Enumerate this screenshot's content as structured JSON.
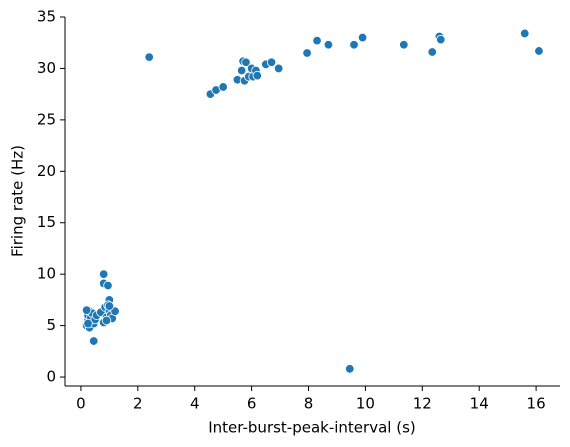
{
  "chart_data": {
    "type": "scatter",
    "x_label": "Inter-burst-peak-interval (s)",
    "y_label": "Firing rate (Hz)",
    "color": "#1f77b4",
    "x": [
      2.4,
      4.55,
      4.75,
      5.0,
      5.5,
      5.65,
      5.7,
      5.75,
      5.8,
      5.9,
      6.0,
      6.05,
      6.15,
      6.2,
      6.5,
      6.7,
      6.95,
      7.95,
      8.3,
      8.7,
      9.6,
      9.9,
      11.35,
      12.35,
      12.6,
      12.65,
      15.6,
      16.1,
      9.45,
      0.8,
      0.8,
      0.95,
      1.0,
      0.45,
      0.2,
      0.25,
      0.25,
      0.3,
      0.3,
      0.35,
      0.4,
      0.45,
      0.5,
      0.55,
      0.7,
      0.8,
      0.85,
      0.9,
      0.95,
      1.0,
      1.05,
      1.1,
      1.2,
      0.9,
      1.0,
      0.2,
      0.25
    ],
    "values": [
      31.1,
      27.5,
      27.9,
      28.2,
      28.9,
      29.8,
      30.7,
      28.8,
      30.6,
      29.2,
      30.0,
      29.2,
      29.8,
      29.3,
      30.4,
      30.6,
      30.0,
      31.5,
      32.7,
      32.3,
      32.3,
      33.0,
      32.3,
      31.6,
      33.1,
      32.8,
      33.4,
      31.7,
      0.8,
      10.0,
      9.1,
      8.9,
      7.5,
      3.5,
      5.0,
      5.5,
      6.0,
      6.4,
      4.8,
      5.8,
      6.2,
      5.2,
      5.6,
      6.0,
      6.3,
      5.3,
      6.8,
      5.8,
      7.0,
      6.5,
      6.0,
      5.7,
      6.4,
      5.5,
      6.9,
      6.5,
      5.2
    ],
    "xlim": [
      -0.56,
      16.84
    ],
    "ylim": [
      -0.87,
      35
    ],
    "xticks": [
      0,
      2,
      4,
      6,
      8,
      10,
      12,
      14,
      16
    ],
    "yticks": [
      0,
      5,
      10,
      15,
      20,
      25,
      30,
      35
    ]
  }
}
